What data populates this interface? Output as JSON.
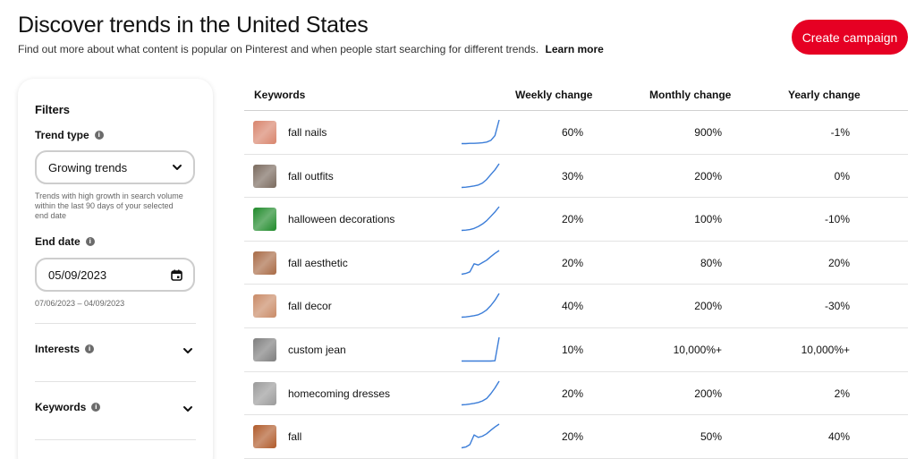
{
  "header": {
    "title": "Discover trends in the United States",
    "subtitle": "Find out more about what content is popular on Pinterest and when people start searching for different trends.",
    "learn_more": "Learn more",
    "create_campaign": "Create campaign",
    "brand_color": "#e60023"
  },
  "filters": {
    "title": "Filters",
    "trend_type_label": "Trend type",
    "trend_type_value": "Growing trends",
    "trend_type_helper": "Trends with high growth in search volume within the last 90 days of your selected end date",
    "end_date_label": "End date",
    "end_date_value": "05/09/2023",
    "end_date_range": "07/06/2023 – 04/09/2023",
    "interests_label": "Interests",
    "keywords_label": "Keywords",
    "info_glyph": "i"
  },
  "table": {
    "columns": [
      "Keywords",
      "Weekly change",
      "Monthly change",
      "Yearly change"
    ],
    "rows": [
      {
        "keyword": "fall nails",
        "weekly": "60%",
        "monthly": "900%",
        "yearly": "-1%",
        "thumb_color": "#d8846c",
        "trend": [
          0.02,
          0.02,
          0.03,
          0.03,
          0.04,
          0.05,
          0.08,
          0.15,
          0.35,
          1.0
        ]
      },
      {
        "keyword": "fall outfits",
        "weekly": "30%",
        "monthly": "200%",
        "yearly": "0%",
        "thumb_color": "#7a6a5e",
        "trend": [
          0.02,
          0.03,
          0.05,
          0.08,
          0.12,
          0.2,
          0.35,
          0.55,
          0.75,
          1.0
        ]
      },
      {
        "keyword": "halloween decorations",
        "weekly": "20%",
        "monthly": "100%",
        "yearly": "-10%",
        "thumb_color": "#1f8a2a",
        "trend": [
          0.02,
          0.03,
          0.05,
          0.1,
          0.18,
          0.28,
          0.42,
          0.6,
          0.78,
          1.0
        ]
      },
      {
        "keyword": "fall aesthetic",
        "weekly": "20%",
        "monthly": "80%",
        "yearly": "20%",
        "thumb_color": "#a86a45",
        "trend": [
          0.02,
          0.05,
          0.12,
          0.45,
          0.4,
          0.5,
          0.6,
          0.75,
          0.88,
          1.0
        ]
      },
      {
        "keyword": "fall decor",
        "weekly": "40%",
        "monthly": "200%",
        "yearly": "-30%",
        "thumb_color": "#c98a66",
        "trend": [
          0.02,
          0.03,
          0.05,
          0.08,
          0.12,
          0.2,
          0.32,
          0.5,
          0.72,
          1.0
        ]
      },
      {
        "keyword": "custom jean",
        "weekly": "10%",
        "monthly": "10,000%+",
        "yearly": "10,000%+",
        "thumb_color": "#7e7e7e",
        "trend": [
          0.02,
          0.02,
          0.02,
          0.02,
          0.02,
          0.02,
          0.02,
          0.02,
          0.03,
          1.0
        ]
      },
      {
        "keyword": "homecoming dresses",
        "weekly": "20%",
        "monthly": "200%",
        "yearly": "2%",
        "thumb_color": "#9a9a9a",
        "trend": [
          0.02,
          0.03,
          0.05,
          0.08,
          0.12,
          0.18,
          0.28,
          0.48,
          0.72,
          1.0
        ]
      },
      {
        "keyword": "fall",
        "weekly": "20%",
        "monthly": "50%",
        "yearly": "40%",
        "thumb_color": "#b05a2a",
        "trend": [
          0.02,
          0.05,
          0.15,
          0.55,
          0.45,
          0.5,
          0.6,
          0.75,
          0.88,
          1.0
        ]
      }
    ],
    "spark_color": "#3b7dd8"
  }
}
